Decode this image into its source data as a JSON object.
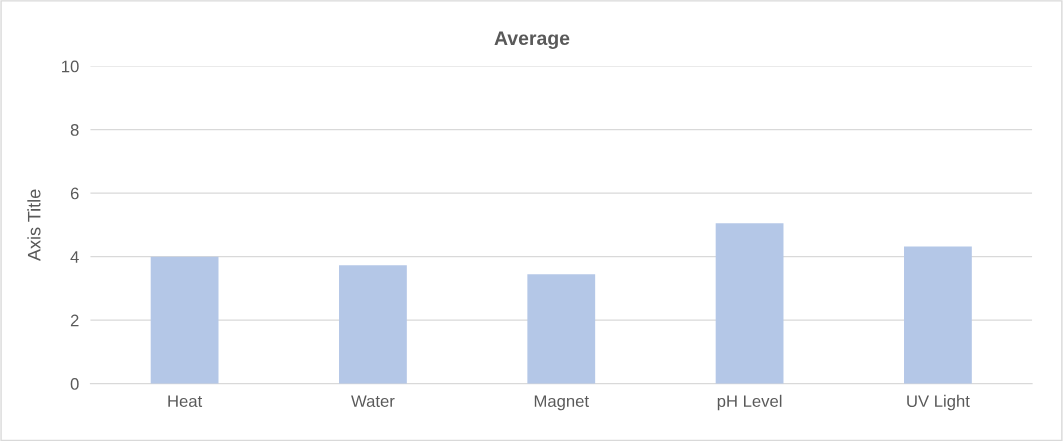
{
  "chart_data": {
    "type": "bar",
    "title": "Average",
    "ylabel": "Axis Title",
    "categories": [
      "Heat",
      "Water",
      "Magnet",
      "pH Level",
      "UV Light"
    ],
    "values": [
      4.0,
      3.73,
      3.45,
      5.05,
      4.32
    ],
    "color": "#b4c7e7",
    "ylim": [
      0,
      10
    ],
    "yticks": [
      0,
      2,
      4,
      6,
      8,
      10
    ],
    "grid": "y"
  }
}
